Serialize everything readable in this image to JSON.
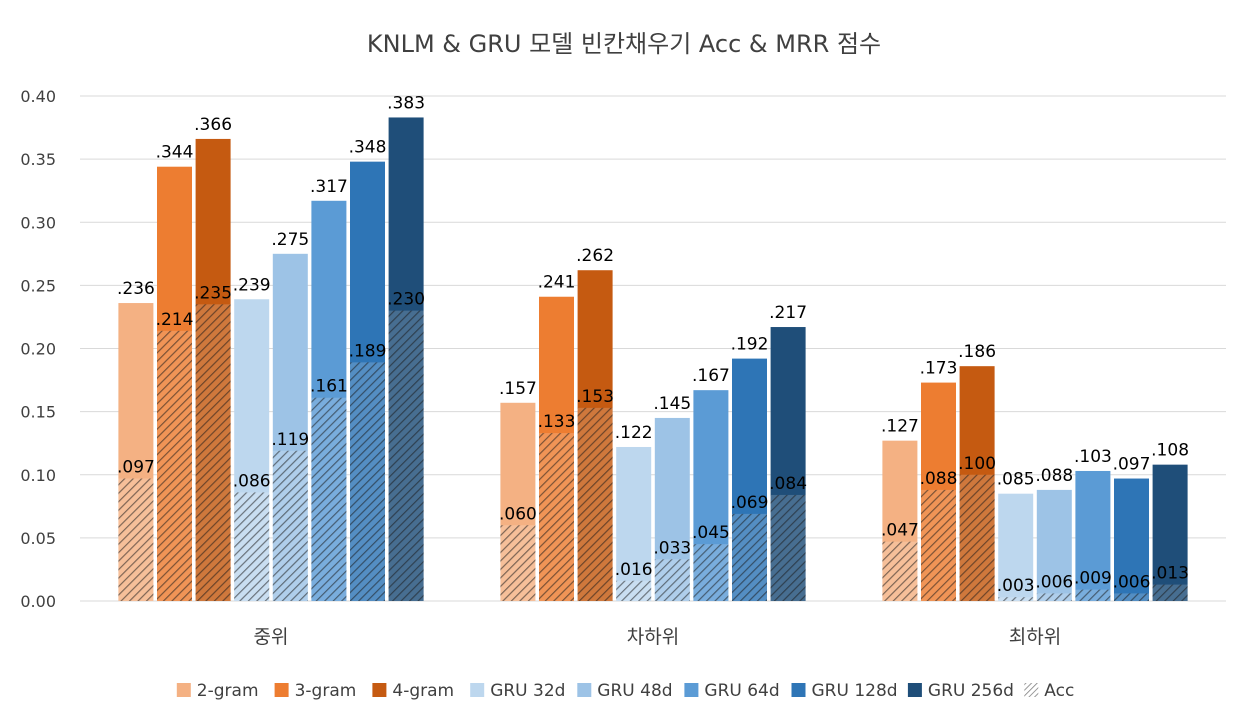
{
  "chart_data": {
    "type": "bar",
    "title": "KNLM & GRU 모델 빈칸채우기 Acc & MRR 점수",
    "categories": [
      "중위",
      "차하위",
      "최하위"
    ],
    "ylim": [
      0,
      0.4
    ],
    "yticks": [
      "0.00",
      "0.05",
      "0.10",
      "0.15",
      "0.20",
      "0.25",
      "0.30",
      "0.35",
      "0.40"
    ],
    "grid": true,
    "legend_position": "bottom",
    "series": [
      {
        "name": "2-gram",
        "color": "#F4B183",
        "values": [
          0.236,
          0.157,
          0.127
        ],
        "acc": [
          0.097,
          0.06,
          0.047
        ],
        "labels": [
          ".236",
          ".157",
          ".127"
        ],
        "acc_labels": [
          ".097",
          ".060",
          ".047"
        ]
      },
      {
        "name": "3-gram",
        "color": "#ED7D31",
        "values": [
          0.344,
          0.241,
          0.173
        ],
        "acc": [
          0.214,
          0.133,
          0.088
        ],
        "labels": [
          ".344",
          ".241",
          ".173"
        ],
        "acc_labels": [
          ".214",
          ".133",
          ".088"
        ]
      },
      {
        "name": "4-gram",
        "color": "#C55A11",
        "values": [
          0.366,
          0.262,
          0.186
        ],
        "acc": [
          0.235,
          0.153,
          0.1
        ],
        "labels": [
          ".366",
          ".262",
          ".186"
        ],
        "acc_labels": [
          ".235",
          ".153",
          ".100"
        ]
      },
      {
        "name": "GRU 32d",
        "color": "#BDD7EE",
        "values": [
          0.239,
          0.122,
          0.085
        ],
        "acc": [
          0.086,
          0.016,
          0.003
        ],
        "labels": [
          ".239",
          ".122",
          ".085"
        ],
        "acc_labels": [
          ".086",
          ".016",
          ".003"
        ]
      },
      {
        "name": "GRU 48d",
        "color": "#9DC3E6",
        "values": [
          0.275,
          0.145,
          0.088
        ],
        "acc": [
          0.119,
          0.033,
          0.006
        ],
        "labels": [
          ".275",
          ".145",
          ".088"
        ],
        "acc_labels": [
          ".119",
          ".033",
          ".006"
        ]
      },
      {
        "name": "GRU 64d",
        "color": "#5B9BD5",
        "values": [
          0.317,
          0.167,
          0.103
        ],
        "acc": [
          0.161,
          0.045,
          0.009
        ],
        "labels": [
          ".317",
          ".167",
          ".103"
        ],
        "acc_labels": [
          ".161",
          ".045",
          ".009"
        ]
      },
      {
        "name": "GRU 128d",
        "color": "#2E75B6",
        "values": [
          0.348,
          0.192,
          0.097
        ],
        "acc": [
          0.189,
          0.069,
          0.006
        ],
        "labels": [
          ".348",
          ".192",
          ".097"
        ],
        "acc_labels": [
          ".189",
          ".069",
          ".006"
        ]
      },
      {
        "name": "GRU 256d",
        "color": "#1F4E79",
        "values": [
          0.383,
          0.217,
          0.108
        ],
        "acc": [
          0.23,
          0.084,
          0.013
        ],
        "labels": [
          ".383",
          ".217",
          ".108"
        ],
        "acc_labels": [
          ".230",
          ".084",
          ".013"
        ]
      }
    ],
    "acc_legend_label": "Acc"
  }
}
